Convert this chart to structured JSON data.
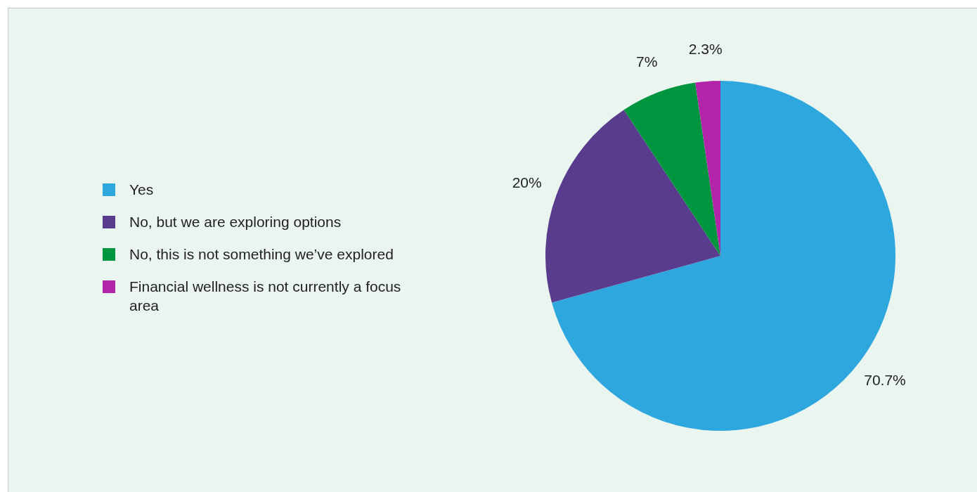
{
  "chart_data": {
    "type": "pie",
    "categories": [
      "Yes",
      "No, but we are exploring options",
      "No, this is not something we’ve explored",
      "Financial wellness is not currently a focus area"
    ],
    "values": [
      70.7,
      20,
      7,
      2.3
    ],
    "colors": [
      "#2ea7de",
      "#5a3c8e",
      "#009640",
      "#b225a8"
    ],
    "value_labels": [
      "70.7%",
      "20%",
      "7%",
      "2.3%"
    ],
    "legend": "left"
  }
}
